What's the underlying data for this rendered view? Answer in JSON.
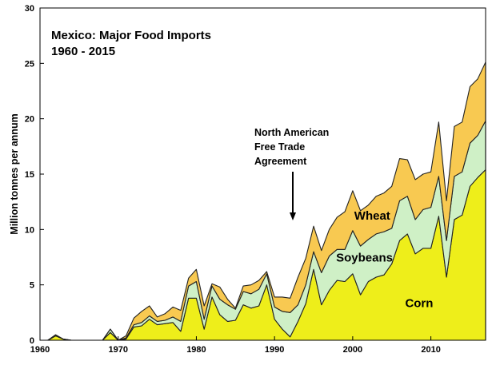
{
  "chart_data": {
    "type": "area",
    "stacked": true,
    "title": [
      "Mexico:  Major Food Imports",
      "1960 - 2015"
    ],
    "xlabel": "",
    "ylabel": "Million tonnes per annum",
    "xlim": [
      1960,
      2017
    ],
    "ylim": [
      0,
      30
    ],
    "xticks": [
      1960,
      1970,
      1980,
      1990,
      2000,
      2010
    ],
    "yticks": [
      0,
      5,
      10,
      15,
      20,
      25,
      30
    ],
    "grid": false,
    "legend": "none",
    "annotation": {
      "lines": [
        "North American",
        "Free Trade",
        "Agreement"
      ],
      "x": 1992,
      "y": 10.8
    },
    "x": [
      1960,
      1961,
      1962,
      1963,
      1964,
      1965,
      1966,
      1967,
      1968,
      1969,
      1970,
      1971,
      1972,
      1973,
      1974,
      1975,
      1976,
      1977,
      1978,
      1979,
      1980,
      1981,
      1982,
      1983,
      1984,
      1985,
      1986,
      1987,
      1988,
      1989,
      1990,
      1991,
      1992,
      1993,
      1994,
      1995,
      1996,
      1997,
      1998,
      1999,
      2000,
      2001,
      2002,
      2003,
      2004,
      2005,
      2006,
      2007,
      2008,
      2009,
      2010,
      2011,
      2012,
      2013,
      2014,
      2015,
      2016,
      2017
    ],
    "series": [
      {
        "name": "Corn",
        "color": "#eeee1a",
        "values": [
          0,
          0,
          0.4,
          0.1,
          0,
          0,
          0,
          0,
          0,
          0.7,
          0,
          0.1,
          1.2,
          1.3,
          1.9,
          1.4,
          1.5,
          1.6,
          0.8,
          3.8,
          3.8,
          1.0,
          3.9,
          2.3,
          1.7,
          1.8,
          3.2,
          2.9,
          3.1,
          5.0,
          1.9,
          1.0,
          0.3,
          1.7,
          3.3,
          6.4,
          3.2,
          4.5,
          5.4,
          5.3,
          6.0,
          4.1,
          5.3,
          5.7,
          5.9,
          6.9,
          9.0,
          9.6,
          7.8,
          8.3,
          8.3,
          11.2,
          5.7,
          10.9,
          11.3,
          13.9,
          14.7,
          15.4
        ]
      },
      {
        "name": "Soybeans",
        "color": "#cff0c6",
        "values": [
          0,
          0,
          0,
          0,
          0,
          0,
          0,
          0,
          0,
          0.3,
          0,
          0.1,
          0.2,
          0.3,
          0.3,
          0.3,
          0.3,
          0.5,
          0.9,
          1.1,
          1.5,
          0.9,
          1.0,
          1.4,
          1.5,
          1.0,
          1.2,
          1.3,
          1.5,
          1.0,
          1.1,
          1.6,
          2.2,
          1.5,
          1.7,
          1.6,
          2.9,
          3.1,
          2.8,
          2.9,
          3.9,
          4.4,
          3.8,
          3.9,
          3.9,
          3.2,
          3.6,
          3.4,
          3.1,
          3.5,
          3.7,
          3.6,
          3.3,
          3.9,
          3.9,
          3.9,
          3.8,
          4.4
        ]
      },
      {
        "name": "Wheat",
        "color": "#f8c951",
        "values": [
          0,
          0,
          0.1,
          0,
          0,
          0,
          0,
          0,
          0,
          0,
          0,
          0.2,
          0.6,
          1.0,
          0.9,
          0.4,
          0.6,
          0.9,
          1.0,
          0.7,
          1.1,
          1.2,
          0.2,
          1.1,
          0.5,
          0.1,
          0.5,
          0.8,
          0.8,
          0.2,
          0.9,
          1.3,
          1.3,
          2.5,
          2.4,
          2.3,
          2.0,
          2.4,
          2.9,
          3.4,
          3.6,
          3.2,
          3.1,
          3.4,
          3.5,
          3.8,
          3.8,
          3.3,
          3.6,
          3.2,
          3.2,
          4.9,
          3.6,
          4.5,
          4.5,
          5.1,
          5.1,
          5.3
        ]
      }
    ],
    "series_labels": [
      {
        "series": "Wheat",
        "text": "Wheat",
        "x": 2002.5,
        "y": 10.9
      },
      {
        "series": "Soybeans",
        "text": "Soybeans",
        "x": 2001.5,
        "y": 7.1
      },
      {
        "series": "Corn",
        "text": "Corn",
        "x": 2008.5,
        "y": 3.0
      }
    ]
  }
}
